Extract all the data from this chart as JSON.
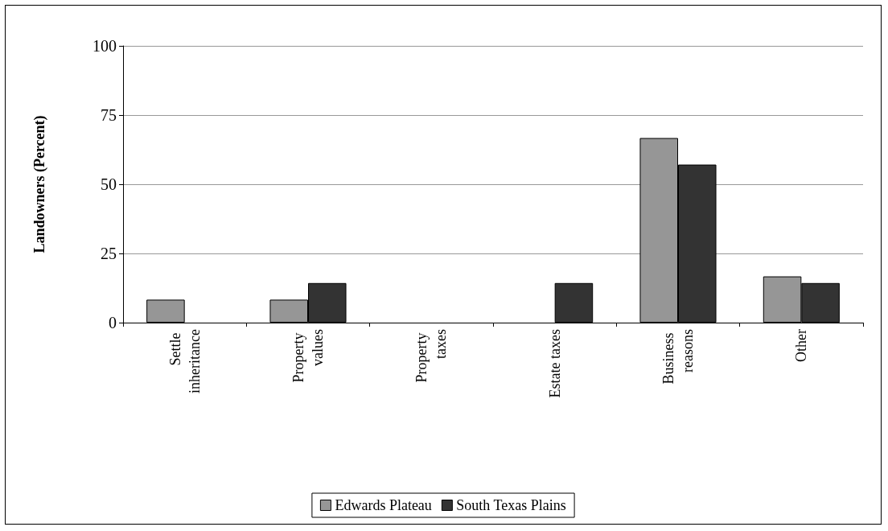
{
  "chart_data": {
    "type": "bar",
    "ylabel": "Landowners (Percent)",
    "categories": [
      "Settle inheritance",
      "Property values",
      "Property taxes",
      "Estate taxes",
      "Business reasons",
      "Other"
    ],
    "series": [
      {
        "name": "Edwards Plateau",
        "color": "#969696",
        "values": [
          8.3,
          8.3,
          0,
          0,
          66.7,
          16.7
        ]
      },
      {
        "name": "South Texas Plains",
        "color": "#333333",
        "values": [
          0,
          14.3,
          0,
          14.3,
          57.1,
          14.3
        ]
      }
    ],
    "ylim": [
      0,
      100
    ],
    "yticks": [
      0,
      25,
      50,
      75,
      100
    ],
    "grid": "y",
    "legend": "bottom"
  }
}
